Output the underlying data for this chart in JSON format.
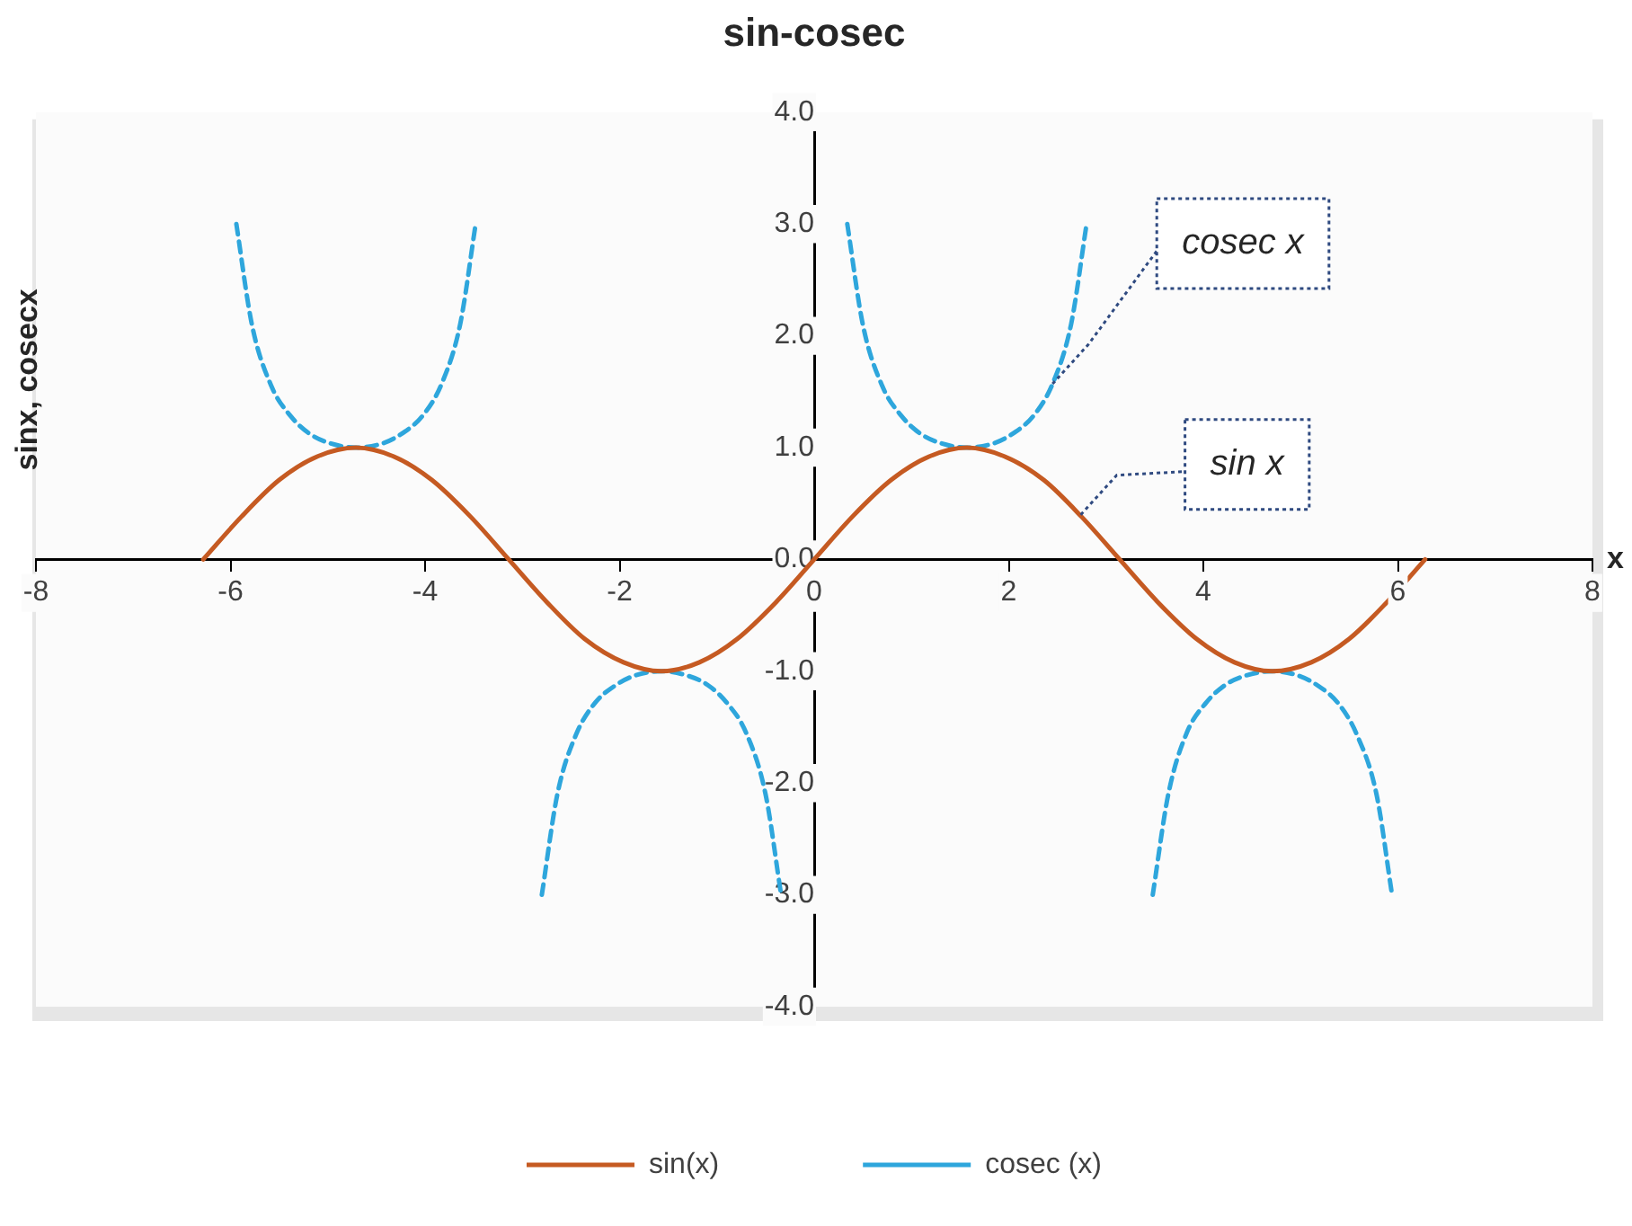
{
  "chart_data": {
    "type": "line",
    "title": "sin-cosec",
    "xlabel": "x",
    "ylabel": "sinx, cosecx",
    "xlim": [
      -8,
      8
    ],
    "xticks": [
      -8,
      -6,
      -4,
      -2,
      0,
      2,
      4,
      6,
      8
    ],
    "ylim": [
      -4,
      4
    ],
    "yticks": [
      {
        "value": -4,
        "label": "-4.0"
      },
      {
        "value": -3,
        "label": "-3.0"
      },
      {
        "value": -2,
        "label": "-2.0"
      },
      {
        "value": -1,
        "label": "-1.0"
      },
      {
        "value": 0,
        "label": "0.0"
      },
      {
        "value": 1,
        "label": "1.0"
      },
      {
        "value": 2,
        "label": "2.0"
      },
      {
        "value": 3,
        "label": "3.0"
      },
      {
        "value": 4,
        "label": "4.0"
      }
    ],
    "grid": false,
    "legend": "bottom",
    "marker": "none",
    "series": [
      {
        "name": "sin(x)",
        "color": "#c55a22",
        "line_style": "solid",
        "x": [
          -6.28,
          -5.89,
          -5.5,
          -5.11,
          -4.71,
          -4.32,
          -3.93,
          -3.53,
          -3.14,
          -2.75,
          -2.36,
          -1.96,
          -1.57,
          -1.18,
          -0.79,
          -0.39,
          0,
          0.39,
          0.79,
          1.18,
          1.57,
          1.96,
          2.36,
          2.75,
          3.14,
          3.53,
          3.93,
          4.32,
          4.71,
          5.11,
          5.5,
          5.89,
          6.28
        ],
        "values": [
          0,
          0.38,
          0.71,
          0.92,
          1,
          0.92,
          0.71,
          0.38,
          0,
          -0.38,
          -0.71,
          -0.92,
          -1,
          -0.92,
          -0.71,
          -0.38,
          0,
          0.38,
          0.71,
          0.92,
          1,
          0.92,
          0.71,
          0.38,
          0,
          -0.38,
          -0.71,
          -0.92,
          -1,
          -0.92,
          -0.71,
          -0.38,
          0
        ]
      },
      {
        "name": "cosec (x)",
        "color": "#2ea6dc",
        "line_style": "dashed",
        "x": [
          -5.94,
          -5.78,
          -5.58,
          -5.38,
          -5.18,
          -4.98,
          -4.71,
          -4.43,
          -4.23,
          -4.03,
          -3.83,
          -3.64,
          -3.48,
          -3.14,
          -2.8,
          -2.64,
          -2.45,
          -2.25,
          -2.05,
          -1.85,
          -1.57,
          -1.3,
          -1.1,
          -0.9,
          -0.7,
          -0.5,
          -0.34,
          0,
          0.34,
          0.5,
          0.7,
          0.9,
          1.1,
          1.3,
          1.57,
          1.85,
          2.05,
          2.25,
          2.45,
          2.64,
          2.8,
          3.14,
          3.48,
          3.64,
          3.83,
          4.03,
          4.23,
          4.43,
          4.71,
          4.98,
          5.18,
          5.38,
          5.58,
          5.78,
          5.94
        ],
        "values": [
          3,
          2.1,
          1.55,
          1.28,
          1.12,
          1.04,
          1,
          1.04,
          1.13,
          1.28,
          1.57,
          2.1,
          3,
          null,
          -3,
          -2.1,
          -1.57,
          -1.28,
          -1.13,
          -1.04,
          -1,
          -1.04,
          -1.12,
          -1.28,
          -1.55,
          -2.1,
          -3,
          null,
          3,
          2.1,
          1.55,
          1.28,
          1.12,
          1.04,
          1,
          1.04,
          1.13,
          1.28,
          1.57,
          2.1,
          3,
          null,
          -3,
          -2.1,
          -1.55,
          -1.28,
          -1.12,
          -1.04,
          -1,
          -1.04,
          -1.13,
          -1.28,
          -1.57,
          -2.1,
          -3
        ]
      }
    ],
    "annotations": [
      {
        "text": "cosec x",
        "x": 2.45,
        "y": 1.57
      },
      {
        "text": "sin x",
        "x": 2.74,
        "y": 0.4
      }
    ]
  }
}
